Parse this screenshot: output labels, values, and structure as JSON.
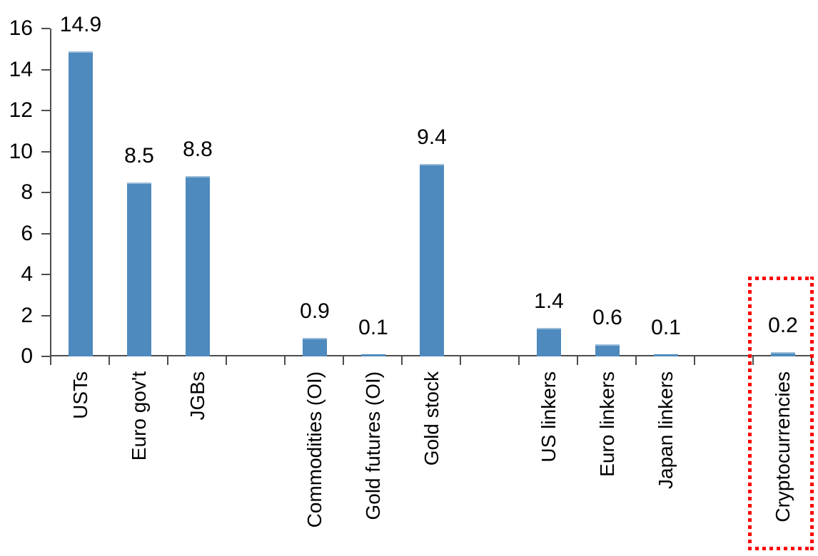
{
  "chart_data": {
    "type": "bar",
    "title": "",
    "categories": [
      "USTs",
      "Euro gov't",
      "JGBs",
      "Commodities (OI)",
      "Gold futures (OI)",
      "Gold stock",
      "US linkers",
      "Euro linkers",
      "Japan linkers",
      "Cryptocurrencies"
    ],
    "values": [
      14.9,
      8.5,
      8.8,
      0.9,
      0.1,
      9.4,
      1.4,
      0.6,
      0.1,
      0.2
    ],
    "data_labels": [
      "14.9",
      "8.5",
      "8.8",
      "0.9",
      "0.1",
      "9.4",
      "1.4",
      "0.6",
      "0.1",
      "0.2"
    ],
    "groups": [
      [
        0,
        1,
        2
      ],
      [
        3,
        4,
        5
      ],
      [
        6,
        7,
        8
      ],
      [
        9
      ]
    ],
    "y_axis": {
      "min": 0,
      "max": 16,
      "tick_step": 2,
      "tick_labels": [
        "0",
        "2",
        "4",
        "6",
        "8",
        "10",
        "12",
        "14",
        "16"
      ]
    },
    "x_axis": {
      "labels_vertical": true
    },
    "grid": false,
    "legend": "none",
    "highlighted_category": "Cryptocurrencies",
    "colors": {
      "bar": "#4e8abd",
      "bar_top_edge": "#9cbedb",
      "axis": "#4d4d4d",
      "text": "#000000",
      "highlight_box": "#ff0000"
    }
  }
}
